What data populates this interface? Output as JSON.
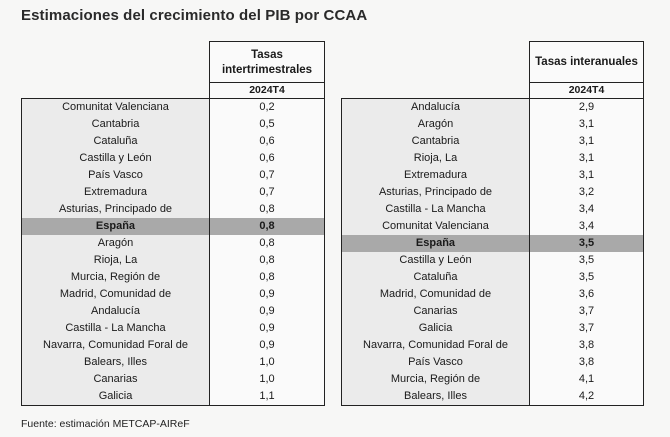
{
  "title": "Estimaciones del crecimiento del PIB por CCAA",
  "source": "Fuente: estimación METCAP-AIReF",
  "left_table": {
    "header_line1": "Tasas",
    "header_line2": "intertrimestrales",
    "period": "2024T4",
    "rows": [
      {
        "name": "Comunitat Valenciana",
        "value": "0,2"
      },
      {
        "name": "Cantabria",
        "value": "0,5"
      },
      {
        "name": "Cataluña",
        "value": "0,6"
      },
      {
        "name": "Castilla y León",
        "value": "0,6"
      },
      {
        "name": "País Vasco",
        "value": "0,7"
      },
      {
        "name": "Extremadura",
        "value": "0,7"
      },
      {
        "name": "Asturias, Principado de",
        "value": "0,8"
      },
      {
        "name": "España",
        "value": "0,8",
        "highlight": true
      },
      {
        "name": "Aragón",
        "value": "0,8"
      },
      {
        "name": "Rioja, La",
        "value": "0,8"
      },
      {
        "name": "Murcia, Región de",
        "value": "0,8"
      },
      {
        "name": "Madrid, Comunidad de",
        "value": "0,9"
      },
      {
        "name": "Andalucía",
        "value": "0,9"
      },
      {
        "name": "Castilla - La Mancha",
        "value": "0,9"
      },
      {
        "name": "Navarra, Comunidad Foral de",
        "value": "0,9"
      },
      {
        "name": "Balears, Illes",
        "value": "1,0"
      },
      {
        "name": "Canarias",
        "value": "1,0"
      },
      {
        "name": "Galicia",
        "value": "1,1"
      }
    ]
  },
  "right_table": {
    "header_line1": "Tasas interanuales",
    "period": "2024T4",
    "rows": [
      {
        "name": "Andalucía",
        "value": "2,9"
      },
      {
        "name": "Aragón",
        "value": "3,1"
      },
      {
        "name": "Cantabria",
        "value": "3,1"
      },
      {
        "name": "Rioja, La",
        "value": "3,1"
      },
      {
        "name": "Extremadura",
        "value": "3,1"
      },
      {
        "name": "Asturias, Principado de",
        "value": "3,2"
      },
      {
        "name": "Castilla - La Mancha",
        "value": "3,4"
      },
      {
        "name": "Comunitat Valenciana",
        "value": "3,4"
      },
      {
        "name": "España",
        "value": "3,5",
        "highlight": true
      },
      {
        "name": "Castilla y León",
        "value": "3,5"
      },
      {
        "name": "Cataluña",
        "value": "3,5"
      },
      {
        "name": "Madrid, Comunidad de",
        "value": "3,6"
      },
      {
        "name": "Canarias",
        "value": "3,7"
      },
      {
        "name": "Galicia",
        "value": "3,7"
      },
      {
        "name": "Navarra, Comunidad Foral de",
        "value": "3,8"
      },
      {
        "name": "País Vasco",
        "value": "3,8"
      },
      {
        "name": "Murcia, Región de",
        "value": "4,1"
      },
      {
        "name": "Balears, Illes",
        "value": "4,2"
      }
    ]
  }
}
